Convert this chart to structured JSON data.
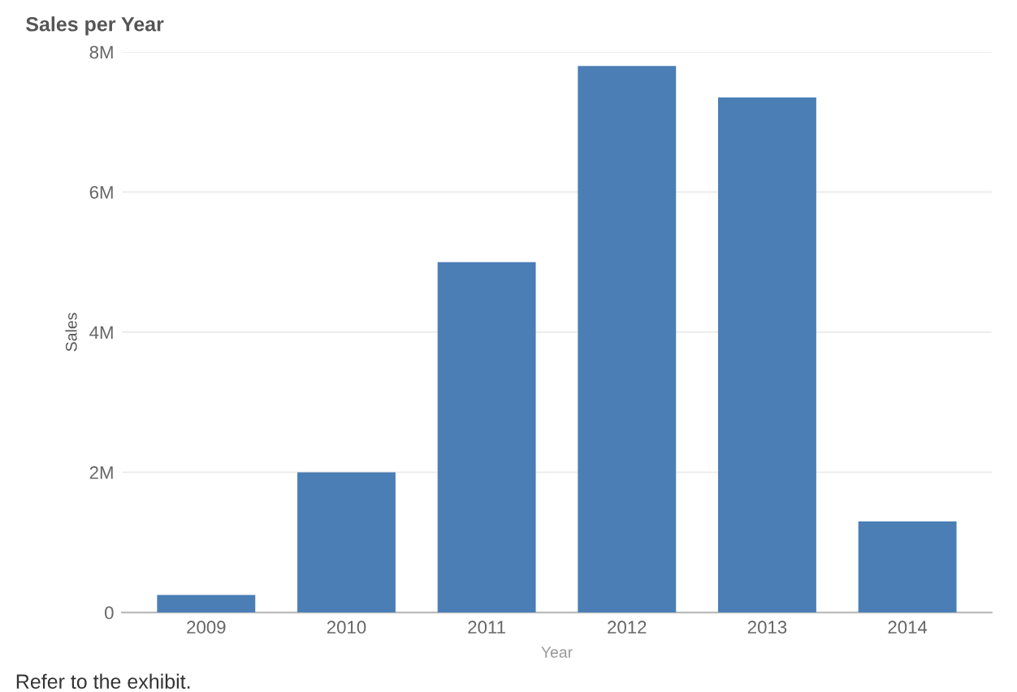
{
  "chart_data": {
    "type": "bar",
    "title": "Sales per Year",
    "xlabel": "Year",
    "ylabel": "Sales",
    "categories": [
      "2009",
      "2010",
      "2011",
      "2012",
      "2013",
      "2014"
    ],
    "values": [
      0.25,
      2.0,
      5.0,
      7.8,
      7.35,
      1.3
    ],
    "color": "#4a7eb5",
    "ylim": [
      0,
      8
    ],
    "yticks": [
      {
        "value": 0,
        "label": "0"
      },
      {
        "value": 2,
        "label": "2M"
      },
      {
        "value": 4,
        "label": "4M"
      },
      {
        "value": 6,
        "label": "6M"
      },
      {
        "value": 8,
        "label": "8M"
      }
    ],
    "grid": "y",
    "annotations": [
      "Refer to the exhibit."
    ]
  }
}
